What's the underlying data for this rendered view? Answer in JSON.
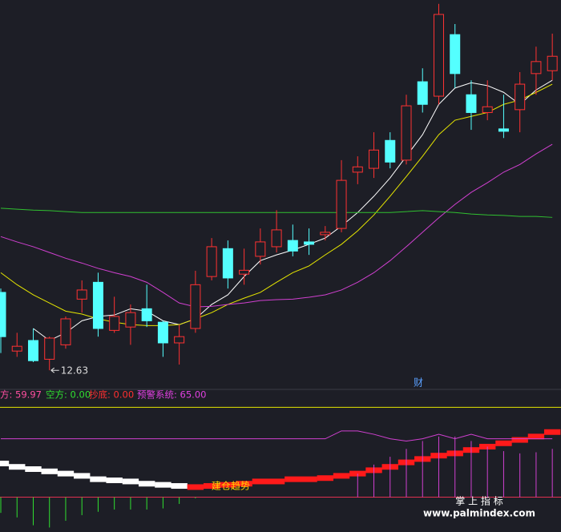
{
  "chart_data": [
    {
      "type": "candlestick",
      "up_color": "#ff3232",
      "down_color": "#54ffff",
      "ylim": [
        12.25,
        20.33
      ],
      "open": [
        14.25,
        13.03,
        13.25,
        12.86,
        13.16,
        14.11,
        14.46,
        13.46,
        13.53,
        13.91,
        13.63,
        13.2,
        13.5,
        14.58,
        15.16,
        14.63,
        15.0,
        15.2,
        15.33,
        15.3,
        15.45,
        15.58,
        16.75,
        16.83,
        17.41,
        17.0,
        18.63,
        18.33,
        19.61,
        18.36,
        17.99,
        17.65,
        18.05,
        18.8,
        18.86
      ],
      "close": [
        13.33,
        13.13,
        12.83,
        13.3,
        13.7,
        14.3,
        13.5,
        13.75,
        13.83,
        13.66,
        13.2,
        13.33,
        14.41,
        15.2,
        14.55,
        14.71,
        15.3,
        15.55,
        15.11,
        15.25,
        15.5,
        16.58,
        16.86,
        17.21,
        16.96,
        18.13,
        18.16,
        20.03,
        18.8,
        17.99,
        18.11,
        17.6,
        18.58,
        19.05,
        19.16
      ],
      "high": [
        14.33,
        13.41,
        13.5,
        13.33,
        13.75,
        14.5,
        14.66,
        14.16,
        14.0,
        14.41,
        13.66,
        13.58,
        14.7,
        15.38,
        15.33,
        15.16,
        15.58,
        15.96,
        15.66,
        15.58,
        15.63,
        17.0,
        17.08,
        17.58,
        17.58,
        18.36,
        18.91,
        20.25,
        19.83,
        18.66,
        18.66,
        18.36,
        18.83,
        19.36,
        19.63
      ],
      "low": [
        12.99,
        12.91,
        12.8,
        12.63,
        13.08,
        13.83,
        13.33,
        13.41,
        13.16,
        13.53,
        12.91,
        12.75,
        13.41,
        14.5,
        14.33,
        14.41,
        14.83,
        15.08,
        15.0,
        15.03,
        15.33,
        15.5,
        16.5,
        16.63,
        16.83,
        16.91,
        17.99,
        18.16,
        18.5,
        17.63,
        17.83,
        17.46,
        17.58,
        18.36,
        18.66
      ],
      "series": [
        {
          "color": "#ffffff",
          "values": [
            null,
            null,
            13.5,
            13.25,
            13.41,
            13.66,
            13.75,
            13.78,
            13.91,
            13.86,
            13.66,
            13.58,
            13.7,
            14.0,
            14.2,
            14.58,
            14.91,
            15.03,
            15.13,
            15.25,
            15.38,
            15.63,
            15.91,
            16.25,
            16.63,
            17.08,
            17.53,
            18.16,
            18.5,
            18.61,
            18.55,
            18.41,
            18.16,
            18.46,
            18.66
          ]
        },
        {
          "color": "#e6e600",
          "values": [
            14.66,
            14.41,
            14.2,
            14.03,
            13.86,
            13.8,
            13.7,
            13.63,
            13.58,
            13.56,
            13.56,
            13.58,
            13.7,
            13.83,
            14.0,
            14.13,
            14.25,
            14.46,
            14.66,
            14.8,
            15.03,
            15.25,
            15.53,
            15.86,
            16.25,
            16.66,
            17.08,
            17.53,
            17.83,
            17.91,
            17.99,
            18.16,
            18.25,
            18.41,
            18.58
          ]
        },
        {
          "color": "#d040d0",
          "values": [
            15.41,
            15.3,
            15.2,
            15.08,
            14.96,
            14.86,
            14.75,
            14.66,
            14.58,
            14.46,
            14.25,
            14.03,
            13.95,
            13.96,
            14.0,
            14.03,
            14.08,
            14.1,
            14.11,
            14.15,
            14.2,
            14.3,
            14.46,
            14.66,
            14.91,
            15.2,
            15.5,
            15.8,
            16.08,
            16.33,
            16.53,
            16.75,
            16.91,
            17.13,
            17.33
          ]
        },
        {
          "color": "#30c030",
          "values": [
            16.0,
            15.98,
            15.96,
            15.95,
            15.93,
            15.91,
            15.91,
            15.91,
            15.91,
            15.91,
            15.91,
            15.91,
            15.91,
            15.91,
            15.91,
            15.91,
            15.91,
            15.91,
            15.91,
            15.91,
            15.91,
            15.91,
            15.91,
            15.91,
            15.91,
            15.93,
            15.95,
            15.93,
            15.91,
            15.88,
            15.86,
            15.85,
            15.83,
            15.83,
            15.81
          ]
        }
      ],
      "annotation": "财"
    },
    {
      "type": "indicator",
      "ylim": [
        -31,
        86
      ],
      "legend": [
        "方: 59.97",
        "空方: 0.00",
        "抄底: 0.00",
        "预警系统: 65.00"
      ],
      "label": "建仓趋势",
      "level": 80,
      "level_color": "#e6e600",
      "series": [
        {
          "style": "step",
          "color": "#ffffff",
          "values": [
            30,
            27,
            25,
            23,
            21,
            19,
            16,
            15,
            14,
            12,
            11,
            10,
            null,
            null,
            null,
            null,
            null,
            null,
            null,
            null,
            null,
            null,
            null,
            null,
            null,
            null,
            null,
            null,
            null,
            null,
            null,
            null,
            null,
            null,
            null
          ]
        },
        {
          "style": "step",
          "color": "#ff1a1a",
          "values": [
            null,
            null,
            null,
            null,
            null,
            null,
            null,
            null,
            null,
            null,
            null,
            null,
            9,
            10,
            11,
            12,
            14,
            14,
            16,
            16,
            17,
            19,
            21,
            24,
            27,
            31,
            34,
            37,
            39,
            42,
            45,
            48,
            51,
            54,
            58
          ]
        },
        {
          "style": "stem",
          "color": "#d040d0",
          "values": [
            null,
            null,
            null,
            null,
            null,
            null,
            null,
            null,
            null,
            null,
            null,
            null,
            null,
            null,
            null,
            null,
            null,
            null,
            null,
            null,
            null,
            null,
            21,
            29,
            36,
            43,
            50,
            54,
            54,
            50,
            45,
            41,
            39,
            40,
            43
          ]
        },
        {
          "style": "stem",
          "color": "#30e030",
          "values": [
            -14,
            -18,
            -25,
            -27,
            -21,
            -16,
            -13,
            -11,
            -11,
            -11,
            -10,
            -6,
            -1,
            0,
            null,
            null,
            null,
            null,
            null,
            null,
            null,
            null,
            null,
            null,
            null,
            null,
            null,
            null,
            null,
            null,
            null,
            null,
            null,
            null,
            null
          ]
        },
        {
          "style": "line",
          "color": "#d040d0",
          "values": [
            52,
            52,
            52,
            52,
            52,
            52,
            52,
            52,
            52,
            52,
            52,
            52,
            52,
            52,
            52,
            52,
            52,
            52,
            52,
            52,
            52,
            59,
            59,
            56,
            52,
            50,
            52,
            56,
            52,
            56,
            52,
            52,
            52,
            52,
            52
          ]
        }
      ]
    }
  ],
  "watermark": [
    "掌 上 指 标",
    "www.palmindex.com"
  ]
}
